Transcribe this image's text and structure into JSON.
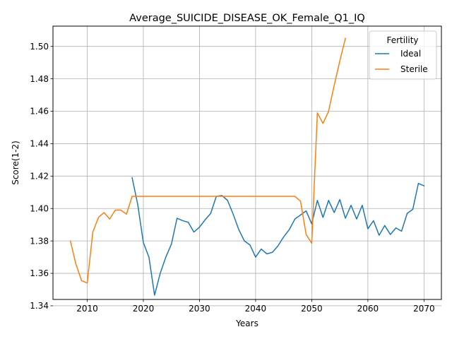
{
  "chart_data": {
    "type": "line",
    "title": "Average_SUICIDE_DISEASE_OK_Female_Q1_IQ",
    "xlabel": "Years",
    "ylabel": "Score(1-2)",
    "xlim": [
      2003.9,
      2073.1
    ],
    "ylim": [
      1.3439,
      1.5125
    ],
    "xticks": [
      2010,
      2020,
      2030,
      2040,
      2050,
      2060,
      2070
    ],
    "yticks": [
      1.34,
      1.36,
      1.38,
      1.4,
      1.42,
      1.44,
      1.46,
      1.48,
      1.5
    ],
    "ytick_labels": [
      "1.34",
      "1.36",
      "1.38",
      "1.40",
      "1.42",
      "1.44",
      "1.46",
      "1.48",
      "1.50"
    ],
    "grid": true,
    "legend": {
      "title": "Fertility",
      "position": "top-right"
    },
    "series": [
      {
        "name": "Ideal",
        "color": "#1f77b4",
        "x": [
          2018,
          2019,
          2020,
          2021,
          2022,
          2023,
          2024,
          2025,
          2026,
          2027,
          2028,
          2029,
          2030,
          2031,
          2032,
          2033,
          2034,
          2035,
          2036,
          2037,
          2038,
          2039,
          2040,
          2041,
          2042,
          2043,
          2044,
          2045,
          2046,
          2047,
          2048,
          2049,
          2050,
          2051,
          2052,
          2053,
          2054,
          2055,
          2056,
          2057,
          2058,
          2059,
          2060,
          2061,
          2062,
          2063,
          2064,
          2065,
          2066,
          2067,
          2068,
          2069,
          2070
        ],
        "y": [
          1.419,
          1.4025,
          1.379,
          1.37,
          1.3465,
          1.36,
          1.37,
          1.378,
          1.394,
          1.3925,
          1.3915,
          1.3855,
          1.3885,
          1.393,
          1.397,
          1.4075,
          1.408,
          1.405,
          1.3965,
          1.387,
          1.38,
          1.3775,
          1.37,
          1.375,
          1.372,
          1.373,
          1.377,
          1.3825,
          1.387,
          1.3935,
          1.396,
          1.3985,
          1.3905,
          1.405,
          1.3945,
          1.405,
          1.3975,
          1.4055,
          1.394,
          1.402,
          1.3935,
          1.402,
          1.3875,
          1.3925,
          1.3835,
          1.3895,
          1.384,
          1.388,
          1.386,
          1.397,
          1.3995,
          1.4155,
          1.414
        ]
      },
      {
        "name": "Sterile",
        "color": "#ff7f0e",
        "x": [
          2007,
          2008,
          2009,
          2010,
          2011,
          2012,
          2013,
          2014,
          2015,
          2016,
          2017,
          2018,
          2019,
          2020,
          2021,
          2022,
          2023,
          2024,
          2025,
          2026,
          2027,
          2028,
          2029,
          2030,
          2031,
          2032,
          2033,
          2034,
          2035,
          2036,
          2037,
          2038,
          2039,
          2040,
          2041,
          2042,
          2043,
          2044,
          2045,
          2046,
          2047,
          2048,
          2049,
          2050,
          2051,
          2052,
          2053,
          2054,
          2055,
          2056
        ],
        "y": [
          1.38,
          1.3655,
          1.3555,
          1.354,
          1.3855,
          1.3945,
          1.3975,
          1.3935,
          1.399,
          1.399,
          1.3965,
          1.4075,
          1.4075,
          1.4075,
          1.4075,
          1.4075,
          1.4075,
          1.4075,
          1.4075,
          1.4075,
          1.4075,
          1.4075,
          1.4075,
          1.4075,
          1.4075,
          1.4075,
          1.4075,
          1.4075,
          1.4075,
          1.4075,
          1.4075,
          1.4075,
          1.4075,
          1.4075,
          1.4075,
          1.4075,
          1.4075,
          1.4075,
          1.4075,
          1.4075,
          1.4075,
          1.4045,
          1.384,
          1.3785,
          1.459,
          1.4525,
          1.46,
          1.476,
          1.491,
          1.505
        ]
      }
    ]
  }
}
